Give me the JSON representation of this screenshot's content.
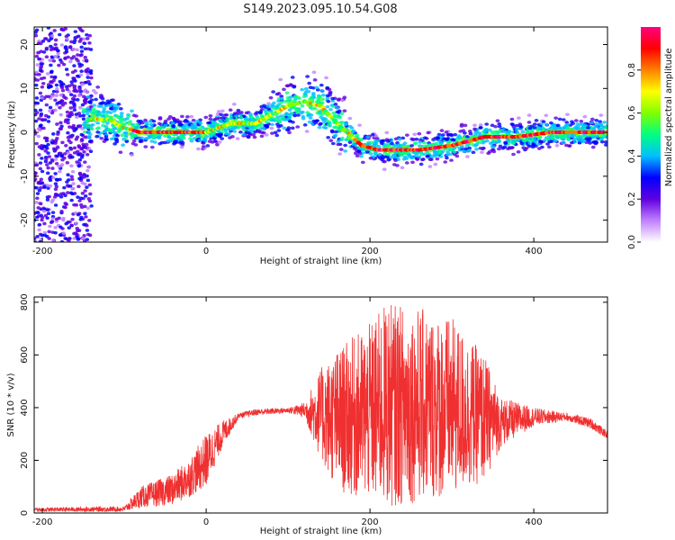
{
  "title": "S149.2023.095.10.54.G08",
  "chart_data": [
    {
      "type": "heatmap",
      "xlabel": "Height of straight line (km)",
      "ylabel": "Frequency (Hz)",
      "xlim": [
        -210,
        490
      ],
      "ylim": [
        -25,
        24
      ],
      "xticks": [
        -200,
        0,
        200,
        400
      ],
      "yticks": [
        20,
        10,
        0,
        -10,
        -20
      ],
      "ridge_frequency": {
        "x": [
          -150,
          -120,
          -100,
          -80,
          -60,
          -20,
          0,
          30,
          60,
          80,
          100,
          120,
          140,
          160,
          190,
          210,
          260,
          300,
          340,
          380,
          420,
          460,
          490
        ],
        "y": [
          3,
          3,
          1,
          0,
          0,
          0,
          0,
          2,
          2,
          4,
          6,
          7,
          6,
          2,
          -3,
          -4,
          -4,
          -3,
          -1,
          -1,
          0,
          0,
          0
        ]
      },
      "colorbar": {
        "label": "Normalized spectral amplitude",
        "range": [
          0,
          1
        ],
        "ticks": [
          "0.0",
          "0.2",
          "0.4",
          "0.6",
          "0.8"
        ],
        "colors": [
          "#ffffff",
          "#c080ff",
          "#6000e0",
          "#0000ff",
          "#00c0ff",
          "#00ff80",
          "#80ff00",
          "#ffff00",
          "#ff8000",
          "#ff0000",
          "#ff0080"
        ]
      }
    },
    {
      "type": "line",
      "xlabel": "Height of straight line (km)",
      "ylabel": "SNR (10 * v/v)",
      "xlim": [
        -210,
        490
      ],
      "ylim": [
        0,
        820
      ],
      "xticks": [
        -200,
        0,
        200,
        400
      ],
      "yticks": [
        0,
        200,
        400,
        600,
        800
      ],
      "color": "#f03030",
      "envelope": {
        "x": [
          -210,
          -100,
          -80,
          -40,
          -20,
          0,
          20,
          40,
          60,
          100,
          120,
          140,
          160,
          200,
          220,
          260,
          300,
          340,
          360,
          400,
          440,
          470,
          490
        ],
        "lower": [
          5,
          5,
          20,
          30,
          60,
          100,
          250,
          360,
          370,
          380,
          360,
          200,
          80,
          40,
          20,
          40,
          60,
          120,
          250,
          330,
          350,
          320,
          280
        ],
        "upper": [
          20,
          25,
          100,
          150,
          210,
          300,
          350,
          380,
          395,
          400,
          420,
          550,
          620,
          720,
          800,
          780,
          740,
          600,
          440,
          400,
          380,
          360,
          310
        ]
      }
    }
  ]
}
